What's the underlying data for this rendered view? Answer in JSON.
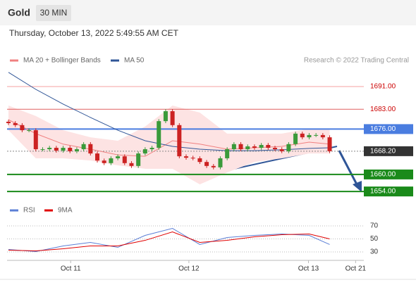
{
  "header": {
    "title": "Gold",
    "interval": "30 MIN",
    "timestamp": "Thursday, October 13, 2022 5:49:55 AM CET"
  },
  "chart_data": [
    {
      "type": "candlestick",
      "source": "Research © 2022 Trading Central",
      "up_color": "#3a9a3a",
      "down_color": "#cc2222",
      "xlim": [
        -1.24,
        52
      ],
      "ylim": [
        1650.8,
        1696.7
      ],
      "xticks": [
        {
          "value": 9.1,
          "label": "Oct 11"
        },
        {
          "value": 26.4,
          "label": "Oct 12"
        },
        {
          "value": 43.9,
          "label": "Oct 13"
        },
        {
          "value": 50.8,
          "label": "Oct 21"
        }
      ],
      "open": [
        1678.6,
        1678.1,
        1677.4,
        1675.6,
        1675.6,
        1668.9,
        1668.9,
        1669.4,
        1668.4,
        1669.4,
        1668.2,
        1668.9,
        1670.7,
        1667.4,
        1664.9,
        1664.0,
        1665.7,
        1666.4,
        1664.0,
        1663.0,
        1667.4,
        1668.9,
        1669.4,
        1678.8,
        1682.3,
        1677.4,
        1666.4,
        1665.9,
        1665.7,
        1664.4,
        1663.0,
        1662.5,
        1665.7,
        1668.9,
        1670.7,
        1668.9,
        1669.9,
        1669.4,
        1670.4,
        1669.4,
        1668.9,
        1668.2,
        1670.7,
        1674.4,
        1673.1,
        1673.9,
        1673.9,
        1673.1
      ],
      "high": [
        1679.3,
        1678.8,
        1678.1,
        1676.3,
        1676.3,
        1669.6,
        1670.1,
        1670.1,
        1670.1,
        1670.1,
        1669.6,
        1671.4,
        1671.4,
        1668.1,
        1665.6,
        1666.4,
        1667.1,
        1667.1,
        1664.7,
        1668.1,
        1669.6,
        1670.1,
        1679.5,
        1683.0,
        1683.0,
        1678.1,
        1667.1,
        1666.6,
        1666.4,
        1665.1,
        1663.7,
        1666.4,
        1669.6,
        1671.4,
        1671.4,
        1670.6,
        1670.6,
        1671.1,
        1671.1,
        1670.1,
        1669.6,
        1671.4,
        1675.1,
        1675.1,
        1674.6,
        1674.6,
        1674.6,
        1673.8
      ],
      "low": [
        1677.4,
        1676.7,
        1674.9,
        1674.9,
        1668.2,
        1668.2,
        1668.2,
        1667.7,
        1667.7,
        1667.5,
        1667.5,
        1668.2,
        1666.7,
        1664.2,
        1663.3,
        1663.3,
        1665.0,
        1663.3,
        1662.3,
        1662.3,
        1666.7,
        1668.2,
        1668.7,
        1678.1,
        1676.7,
        1665.7,
        1665.2,
        1665.0,
        1663.7,
        1662.3,
        1661.8,
        1661.8,
        1665.0,
        1668.2,
        1668.2,
        1668.2,
        1668.7,
        1668.7,
        1668.7,
        1668.2,
        1667.5,
        1667.5,
        1670.0,
        1672.4,
        1672.4,
        1673.2,
        1672.4,
        1667.5
      ],
      "close": [
        1678.1,
        1677.4,
        1675.6,
        1675.6,
        1668.9,
        1668.9,
        1669.4,
        1668.4,
        1669.4,
        1668.2,
        1668.9,
        1670.7,
        1667.4,
        1664.9,
        1664.0,
        1665.7,
        1666.4,
        1664.0,
        1663.0,
        1667.4,
        1668.9,
        1669.4,
        1678.8,
        1682.3,
        1677.4,
        1666.4,
        1665.9,
        1665.7,
        1664.4,
        1663.0,
        1662.5,
        1665.7,
        1668.9,
        1670.7,
        1668.9,
        1669.9,
        1669.4,
        1670.4,
        1669.4,
        1668.9,
        1668.2,
        1670.7,
        1674.4,
        1673.1,
        1673.9,
        1673.9,
        1673.1,
        1668.2
      ],
      "overlays": [
        {
          "name": "MA 20 + Bollinger Bands",
          "color": "#f08080",
          "band_color": "#fde3e3",
          "x": [
            0,
            4,
            8,
            12,
            16,
            20,
            24,
            28,
            32,
            36,
            40,
            44,
            47
          ],
          "values": [
            1679.3,
            1674.4,
            1670.7,
            1668.9,
            1666.9,
            1666.4,
            1671.9,
            1670.7,
            1668.9,
            1669.4,
            1669.9,
            1671.4,
            1670.7
          ],
          "upper": [
            1684.3,
            1680.6,
            1675.6,
            1673.1,
            1671.9,
            1676.9,
            1684.3,
            1681.8,
            1674.4,
            1674.4,
            1674.4,
            1676.1,
            1676.1
          ],
          "lower": [
            1675.6,
            1665.7,
            1665.7,
            1664.9,
            1663.2,
            1662.0,
            1662.0,
            1656.5,
            1660.7,
            1664.4,
            1665.7,
            1667.4,
            1667.4
          ]
        },
        {
          "name": "MA 50",
          "color": "#2f5597",
          "x": [
            0,
            4,
            8,
            12,
            16,
            20,
            24,
            28,
            32,
            36,
            40,
            44,
            47
          ],
          "values": [
            1696.0,
            1690.0,
            1684.8,
            1680.1,
            1675.6,
            1671.9,
            1669.9,
            1668.9,
            1668.4,
            1668.4,
            1668.7,
            1669.2,
            1669.4
          ]
        }
      ],
      "levels": [
        {
          "value": 1691,
          "label": "1691.00",
          "color": "#f4a0a0",
          "text_color": "#cc0000",
          "boxed": false,
          "dotted": false
        },
        {
          "value": 1683,
          "label": "1683.00",
          "color": "#e06060",
          "text_color": "#cc0000",
          "boxed": false,
          "dotted": false
        },
        {
          "value": 1676,
          "label": "1676.00",
          "color": "#4a7de0",
          "text_color": "#ffffff",
          "boxed": true,
          "dotted": false
        },
        {
          "value": 1668.2,
          "label": "1668.20",
          "color": "#333333",
          "text_color": "#ffffff",
          "boxed": true,
          "dotted": true
        },
        {
          "value": 1660,
          "label": "1660.00",
          "color": "#1a8a1a",
          "text_color": "#ffffff",
          "boxed": true,
          "dotted": false
        },
        {
          "value": 1654,
          "label": "1654.00",
          "color": "#1a8a1a",
          "text_color": "#ffffff",
          "boxed": true,
          "dotted": false
        }
      ]
    },
    {
      "type": "line",
      "xlim": [
        -1.24,
        52
      ],
      "ylim": [
        19.2,
        81.9
      ],
      "yticks": [
        30,
        50,
        70
      ],
      "series": [
        {
          "name": "RSI",
          "color": "#5b7fd6",
          "x": [
            0,
            4,
            8,
            12,
            16,
            20,
            24,
            28,
            32,
            36,
            40,
            44,
            47
          ],
          "values": [
            33.8,
            30.5,
            39.2,
            44.6,
            37.0,
            55.4,
            66.2,
            41.4,
            52.2,
            55.4,
            57.6,
            55.4,
            41.4
          ]
        },
        {
          "name": "9MA",
          "color": "#e00000",
          "x": [
            0,
            4,
            8,
            12,
            16,
            20,
            24,
            28,
            32,
            36,
            40,
            44,
            47
          ],
          "values": [
            32.7,
            31.6,
            34.9,
            39.2,
            39.2,
            47.8,
            60.8,
            44.6,
            47.8,
            53.2,
            56.5,
            57.6,
            50.0
          ]
        }
      ]
    }
  ]
}
